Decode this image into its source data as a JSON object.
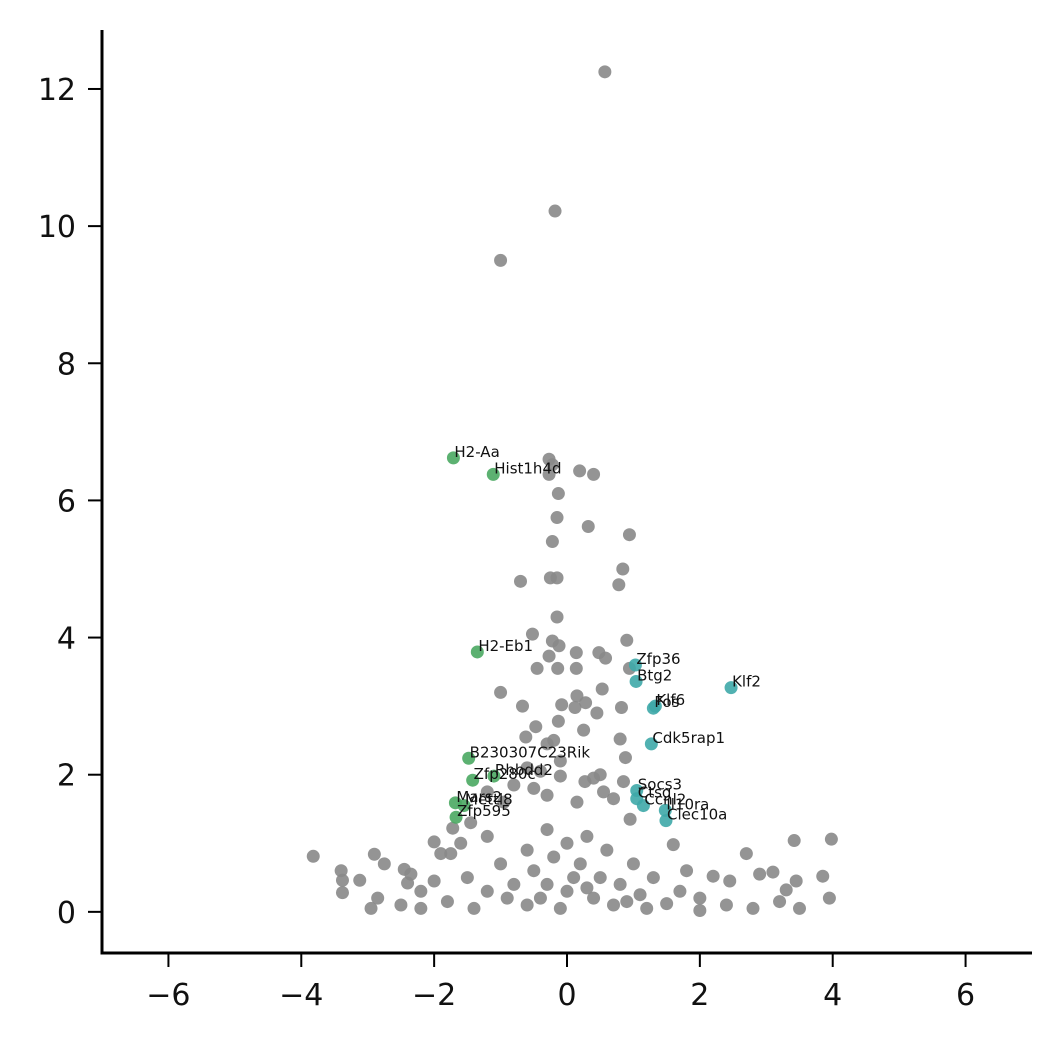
{
  "chart_data": {
    "type": "scatter",
    "xlim": [
      -7,
      7
    ],
    "ylim": [
      -0.6,
      12.86
    ],
    "xticks": [
      {
        "value": -6,
        "label": "−6"
      },
      {
        "value": -4,
        "label": "−4"
      },
      {
        "value": -2,
        "label": "−2"
      },
      0,
      2,
      4,
      6
    ],
    "yticks": [
      0,
      2,
      4,
      6,
      8,
      10,
      12
    ],
    "series": [
      {
        "color": "#888888",
        "x": [
          0.57,
          -0.18,
          -1.0,
          -0.27,
          -0.22,
          -0.27,
          0.19,
          0.4,
          -0.13,
          -0.15,
          0.32,
          0.94,
          -0.22,
          0.84,
          -0.25,
          -0.15,
          -0.7,
          0.78,
          -0.15,
          -0.52,
          -0.22,
          -0.12,
          0.9,
          0.48,
          0.14,
          -0.27,
          0.58,
          -0.45,
          -0.14,
          0.14,
          0.94,
          0.53,
          -1.0,
          0.15,
          0.28,
          -0.08,
          0.82,
          -0.67,
          0.12,
          0.45,
          -0.13,
          -0.47,
          0.25,
          -0.62,
          -0.2,
          0.8,
          -0.3,
          0.88,
          -0.1,
          -0.6,
          -0.4,
          -0.1,
          0.4,
          0.5,
          0.27,
          0.85,
          -0.8,
          -0.5,
          0.55,
          0.7,
          -0.3,
          0.15,
          -1.2,
          -0.95,
          0.95,
          1.6,
          2.7,
          3.42,
          3.98,
          3.85,
          3.95,
          3.3,
          3.45,
          3.1,
          2.9,
          2.45,
          2.2,
          1.8,
          -3.82,
          -3.4,
          -3.38,
          -3.38,
          -3.12,
          -2.9,
          -2.75,
          -2.45,
          -2.4,
          -2.35,
          -2.0,
          -1.9,
          -1.75,
          -1.6,
          -1.72,
          -1.45,
          -1.2,
          -2.95,
          -2.85,
          -2.5,
          -2.2,
          -2.0,
          -1.5,
          -1.0,
          -0.6,
          -0.3,
          0.0,
          0.3,
          0.6,
          1.0,
          1.3,
          1.7,
          2.0,
          2.4,
          2.8,
          3.2,
          3.5,
          -1.8,
          -1.2,
          -0.8,
          -0.5,
          -0.2,
          0.2,
          0.5,
          0.8,
          1.1,
          1.5,
          -0.4,
          0.0,
          0.4,
          -0.1,
          0.1,
          -0.6,
          0.7,
          -1.4,
          1.2,
          -2.2,
          2.0,
          -0.3,
          0.3,
          -0.9,
          0.9
        ],
        "values": [
          12.25,
          10.22,
          9.5,
          6.6,
          6.52,
          6.38,
          6.43,
          6.38,
          6.1,
          5.75,
          5.62,
          5.5,
          5.4,
          5.0,
          4.87,
          4.87,
          4.82,
          4.77,
          4.3,
          4.05,
          3.95,
          3.88,
          3.96,
          3.78,
          3.78,
          3.73,
          3.7,
          3.55,
          3.55,
          3.55,
          3.55,
          3.25,
          3.2,
          3.15,
          3.05,
          3.02,
          2.98,
          3.0,
          2.98,
          2.9,
          2.78,
          2.7,
          2.65,
          2.55,
          2.5,
          2.52,
          2.45,
          2.25,
          2.2,
          2.1,
          2.05,
          1.98,
          1.95,
          2.0,
          1.9,
          1.9,
          1.85,
          1.8,
          1.75,
          1.65,
          1.7,
          1.6,
          1.75,
          1.6,
          1.35,
          0.98,
          0.85,
          1.04,
          1.06,
          0.52,
          0.2,
          0.32,
          0.45,
          0.58,
          0.55,
          0.45,
          0.52,
          0.6,
          0.81,
          0.6,
          0.46,
          0.28,
          0.46,
          0.84,
          0.7,
          0.62,
          0.42,
          0.55,
          1.02,
          0.85,
          0.85,
          1.0,
          1.22,
          1.3,
          1.1,
          0.05,
          0.2,
          0.1,
          0.3,
          0.45,
          0.5,
          0.7,
          0.9,
          1.2,
          1.0,
          1.1,
          0.9,
          0.7,
          0.5,
          0.3,
          0.2,
          0.1,
          0.05,
          0.15,
          0.05,
          0.15,
          0.3,
          0.4,
          0.6,
          0.8,
          0.7,
          0.5,
          0.4,
          0.25,
          0.12,
          0.2,
          0.3,
          0.2,
          0.05,
          0.5,
          0.1,
          0.1,
          0.05,
          0.05,
          0.05,
          0.02,
          0.4,
          0.35,
          0.2,
          0.15
        ]
      },
      {
        "color": "#4aa862",
        "x": [
          -1.71,
          -1.11,
          -1.35,
          -1.48,
          -1.42,
          -1.1,
          -1.68,
          -1.55,
          -1.67
        ],
        "values": [
          6.62,
          6.38,
          3.79,
          2.24,
          1.92,
          1.98,
          1.59,
          1.55,
          1.38
        ],
        "labels": [
          "H2-Aa",
          "Hist1h4d",
          "H2-Eb1",
          "B230307C23Rik",
          "Zfp280c",
          "Rhbdd2",
          "Mars2",
          "Mettl8",
          "Zfp595"
        ]
      },
      {
        "color": "#3ea8a8",
        "x": [
          1.03,
          1.04,
          2.47,
          1.33,
          1.3,
          1.27,
          1.05,
          1.05,
          1.15,
          1.48,
          1.49
        ],
        "values": [
          3.6,
          3.36,
          3.27,
          3.0,
          2.97,
          2.45,
          1.77,
          1.65,
          1.55,
          1.48,
          1.33
        ],
        "labels": [
          "Zfp36",
          "Btg2",
          "Klf2",
          "Klf6",
          "Fos",
          "Cdk5rap1",
          "Socs3",
          "Ctsg",
          "Ccnl2",
          "Il10ra",
          "Clec10a"
        ]
      }
    ]
  }
}
